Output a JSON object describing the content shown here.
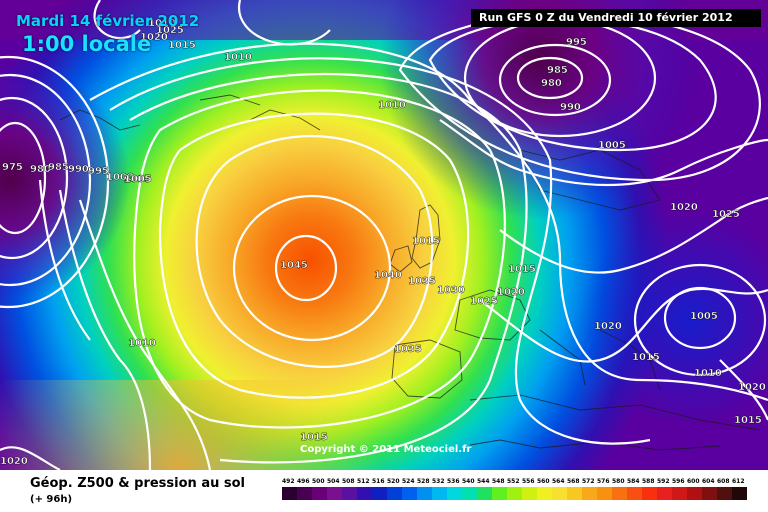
{
  "header": {
    "date": "Mardi 14 février 2012",
    "time": "1:00 locale",
    "run": "Run GFS 0 Z du Vendredi 10 février 2012"
  },
  "copyright": "Copyright © 2011 Meteociel.fr",
  "legend": {
    "title": "Géop. Z500 & pression au sol",
    "subtitle": "(+ 96h)",
    "scale_values": [
      "492",
      "496",
      "500",
      "504",
      "508",
      "512",
      "516",
      "520",
      "524",
      "528",
      "532",
      "536",
      "540",
      "544",
      "548",
      "552",
      "556",
      "560",
      "564",
      "568",
      "572",
      "576",
      "580",
      "584",
      "588",
      "592",
      "596",
      "600",
      "604",
      "608",
      "612"
    ],
    "scale_colors": [
      "#2a0030",
      "#4a0050",
      "#6a0078",
      "#7a1090",
      "#5a10a0",
      "#3010b0",
      "#1020c0",
      "#0040d8",
      "#0060f0",
      "#0090f0",
      "#00b8f0",
      "#00d8e0",
      "#00e0b0",
      "#20e060",
      "#60f020",
      "#a0f010",
      "#d0f010",
      "#f0f020",
      "#f8e030",
      "#f8c820",
      "#f8a818",
      "#f89010",
      "#f87010",
      "#f85010",
      "#f83010",
      "#e82020",
      "#d01818",
      "#b01010",
      "#801010",
      "#501010",
      "#200808"
    ]
  },
  "pressure_labels": [
    "1045",
    "1040",
    "1035",
    "1030",
    "1025",
    "1020",
    "1015",
    "1010",
    "1005",
    "1000",
    "995",
    "990",
    "985",
    "980",
    "975",
    "1020",
    "1025",
    "1015",
    "1010",
    "1005",
    "1010",
    "1015",
    "1020",
    "1035",
    "1025",
    "1020",
    "1015",
    "1010",
    "1005",
    "1015",
    "1020"
  ],
  "pressure_label_ids": [
    "1045",
    "1040",
    "1035",
    "1030",
    "1025",
    "1020",
    "1015",
    "1010",
    "1005"
  ],
  "map_labels": [
    {
      "text": "1045"
    },
    {
      "text": "1040"
    },
    {
      "text": "1035"
    },
    {
      "text": "1030"
    },
    {
      "text": "1025"
    },
    {
      "text": "1020"
    },
    {
      "text": "1015"
    },
    {
      "text": "1010"
    },
    {
      "text": "1005"
    },
    {
      "text": "995"
    },
    {
      "text": "985"
    },
    {
      "text": "980"
    },
    {
      "text": "990"
    },
    {
      "text": "1005"
    },
    {
      "text": "1010"
    },
    {
      "text": "1020"
    },
    {
      "text": "1025"
    },
    {
      "text": "1015"
    },
    {
      "text": "1020"
    },
    {
      "text": "1005"
    },
    {
      "text": "1015"
    },
    {
      "text": "1010"
    },
    {
      "text": "1020"
    },
    {
      "text": "1015"
    },
    {
      "text": "1035"
    },
    {
      "text": "1010"
    },
    {
      "text": "1020"
    },
    {
      "text": "975"
    },
    {
      "text": "980"
    },
    {
      "text": "985"
    },
    {
      "text": "990"
    },
    {
      "text": "995"
    },
    {
      "text": "1000"
    },
    {
      "text": "1005"
    },
    {
      "text": "1010"
    },
    {
      "text": "1015"
    },
    {
      "text": "1020"
    },
    {
      "text": "1025"
    },
    {
      "text": "1015"
    }
  ],
  "colors": {
    "high_center": "#f86000",
    "ridge": "#f8c030",
    "mid": "#60e040",
    "trough": "#0040e0",
    "deep_low": "#6a0078",
    "isobar": "#ffffff"
  }
}
